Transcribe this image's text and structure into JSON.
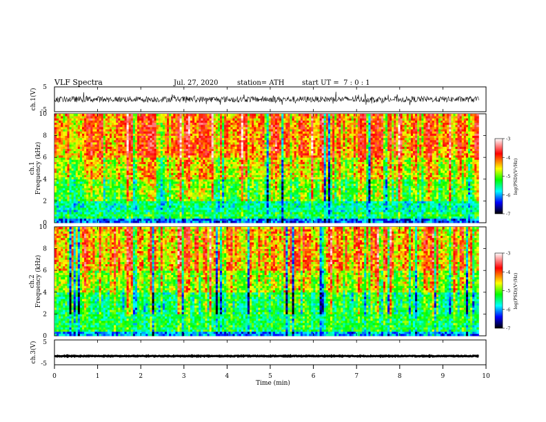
{
  "header": {
    "title": "VLF Spectra",
    "date": "Jul. 27, 2020",
    "station": "station= ATH",
    "start": "start UT =  7 : 0 : 1"
  },
  "colorbar": {
    "label": "log(PSD)(V²/Hz)",
    "ticks": [
      "-3",
      "-4",
      "-5",
      "-6",
      "-7"
    ],
    "colors": [
      "#ffffff",
      "#ff0000",
      "#ffff00",
      "#00ff00",
      "#00ffff",
      "#0000ff",
      "#000000"
    ]
  },
  "chart_data": [
    {
      "type": "line",
      "name": "ch.1 waveform",
      "ylabel": "ch.1(V)",
      "ylim": [
        -5,
        5
      ],
      "yticks": [
        "5",
        "-5"
      ],
      "xlim": [
        0,
        10
      ],
      "grid": false,
      "baseline": 0,
      "noise_amplitude": 1.2
    },
    {
      "type": "heatmap",
      "name": "ch.1 spectrogram",
      "ylabel": "ch.1 Frequency (kHz)",
      "xlim": [
        0,
        9.83
      ],
      "ylim": [
        0,
        10
      ],
      "yticks": [
        "0",
        "2",
        "4",
        "6",
        "8",
        "10"
      ],
      "colorscale_range": [
        -7,
        -3
      ],
      "bands": [
        {
          "freq_khz": [
            0,
            0.5
          ],
          "log_psd": -6.2
        },
        {
          "freq_khz": [
            0.5,
            1.0
          ],
          "log_psd": -5.4
        },
        {
          "freq_khz": [
            1.0,
            2.0
          ],
          "log_psd": -5.6
        },
        {
          "freq_khz": [
            2.0,
            4.0
          ],
          "log_psd": -5.1
        },
        {
          "freq_khz": [
            4.0,
            6.0
          ],
          "log_psd": -4.7
        },
        {
          "freq_khz": [
            6.0,
            10.0
          ],
          "log_psd": -4.3
        }
      ]
    },
    {
      "type": "heatmap",
      "name": "ch.2 spectrogram",
      "ylabel": "ch.2 Frequency (kHz)",
      "xlim": [
        0,
        9.83
      ],
      "ylim": [
        0,
        10
      ],
      "yticks": [
        "0",
        "2",
        "4",
        "6",
        "8",
        "10"
      ],
      "colorscale_range": [
        -7,
        -3
      ],
      "bands": [
        {
          "freq_khz": [
            0,
            0.5
          ],
          "log_psd": -6.0
        },
        {
          "freq_khz": [
            0.5,
            1.0
          ],
          "log_psd": -5.3
        },
        {
          "freq_khz": [
            1.0,
            2.0
          ],
          "log_psd": -5.3
        },
        {
          "freq_khz": [
            2.0,
            4.0
          ],
          "log_psd": -5.3
        },
        {
          "freq_khz": [
            4.0,
            6.0
          ],
          "log_psd": -4.8
        },
        {
          "freq_khz": [
            6.0,
            10.0
          ],
          "log_psd": -4.4
        }
      ]
    },
    {
      "type": "line",
      "name": "ch.3 waveform",
      "ylabel": "ch.3(V)",
      "ylim": [
        -5,
        5
      ],
      "yticks": [
        "5",
        "-5"
      ],
      "xlim": [
        0,
        10
      ],
      "grid": false,
      "baseline": -1.5,
      "noise_amplitude": 0.15
    }
  ],
  "x_axis": {
    "label": "Time (min)",
    "range": [
      0,
      10
    ],
    "ticks": [
      "0",
      "1",
      "2",
      "3",
      "4",
      "5",
      "6",
      "7",
      "8",
      "9",
      "10"
    ]
  }
}
